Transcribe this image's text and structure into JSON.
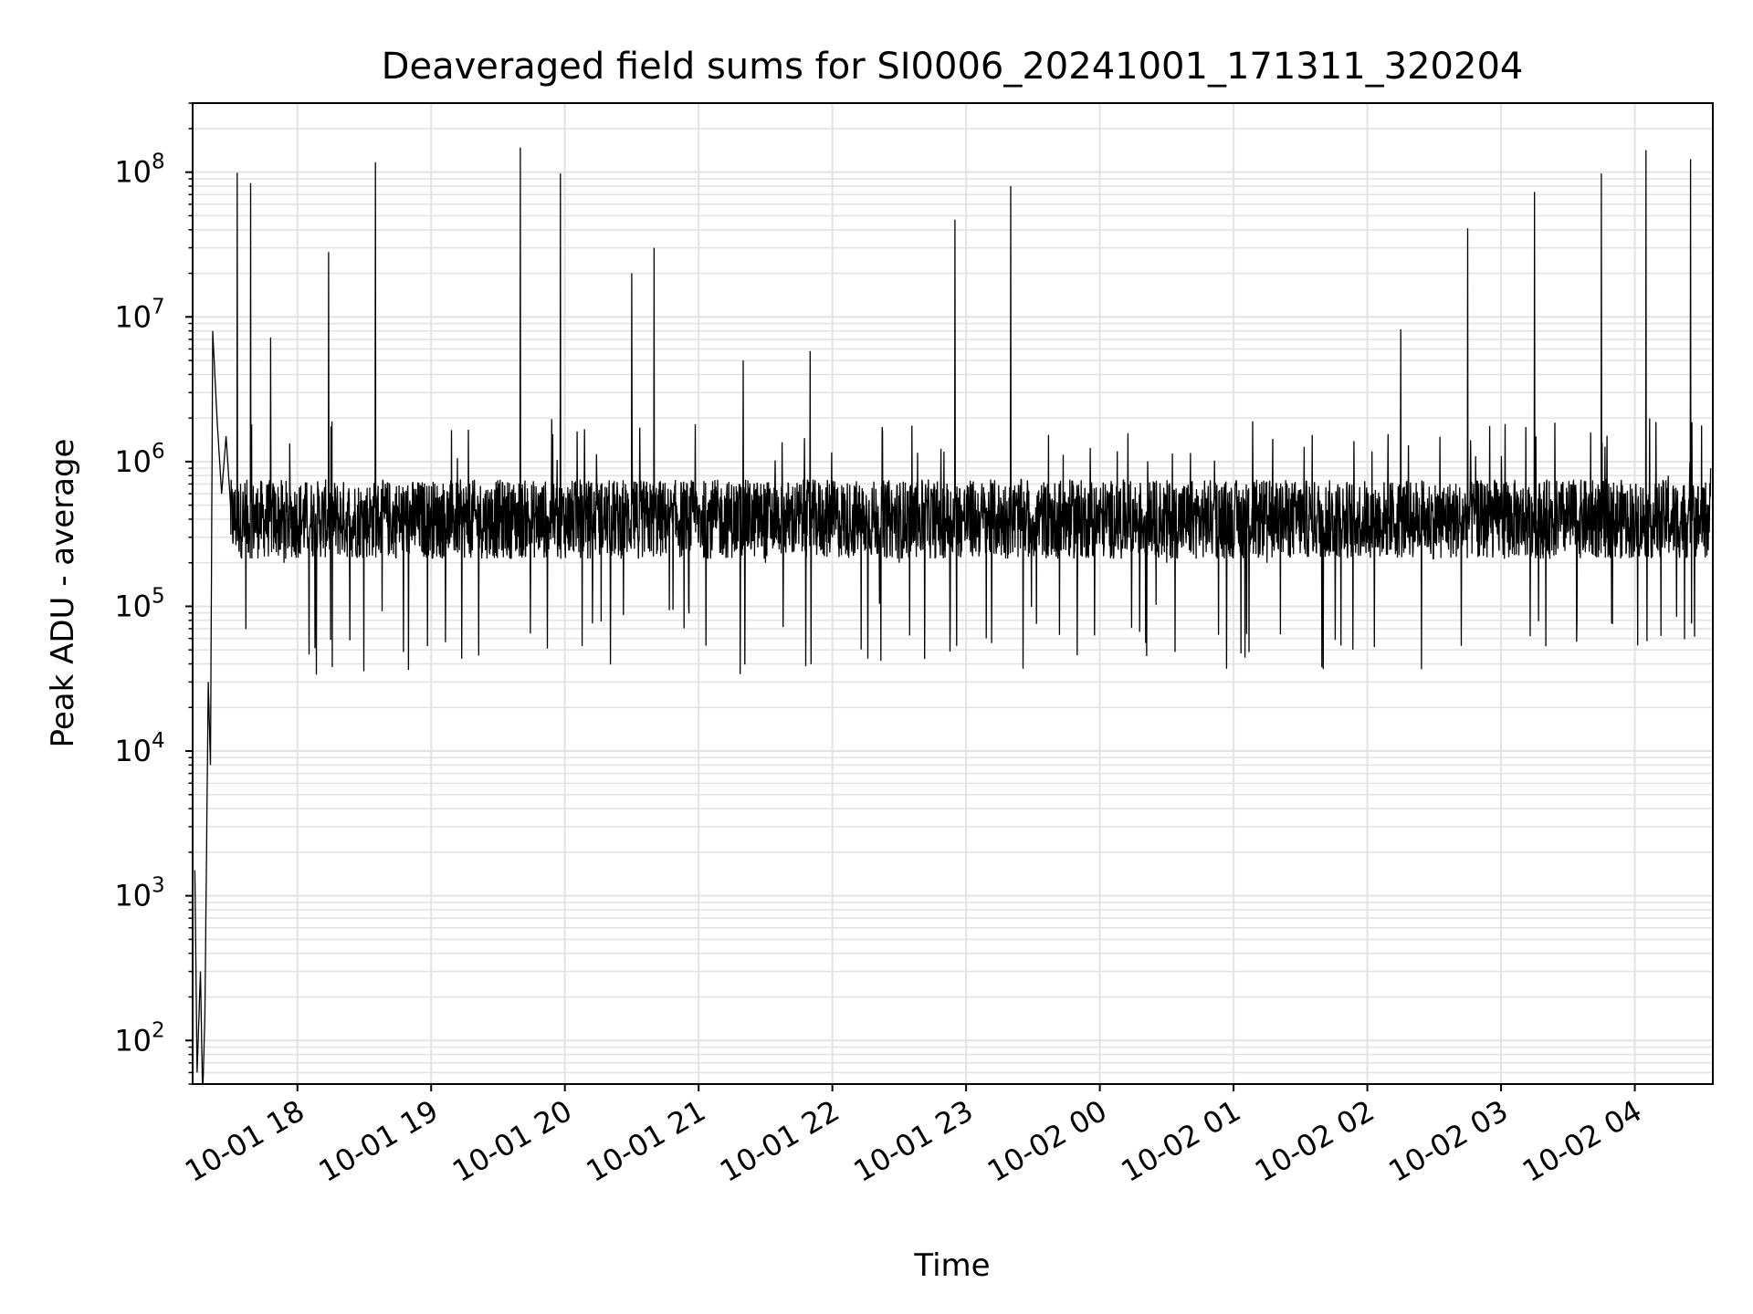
{
  "chart_data": {
    "type": "line",
    "title": "Deaveraged field sums for SI0006_20241001_171311_320204",
    "xlabel": "Time",
    "ylabel": "Peak ADU - average",
    "yscale": "log",
    "ylim": [
      50,
      300000000
    ],
    "xlim": [
      "2024-10-01T17:13:00",
      "2024-10-02T04:35:00"
    ],
    "grid": true,
    "line_color": "#000000",
    "grid_color": "#e3e3e3",
    "x_ticks": [
      {
        "t": "2024-10-01T18:00",
        "label": "10-01 18"
      },
      {
        "t": "2024-10-01T19:00",
        "label": "10-01 19"
      },
      {
        "t": "2024-10-01T20:00",
        "label": "10-01 20"
      },
      {
        "t": "2024-10-01T21:00",
        "label": "10-01 21"
      },
      {
        "t": "2024-10-01T22:00",
        "label": "10-01 22"
      },
      {
        "t": "2024-10-01T23:00",
        "label": "10-01 23"
      },
      {
        "t": "2024-10-02T00:00",
        "label": "10-02 00"
      },
      {
        "t": "2024-10-02T01:00",
        "label": "10-02 01"
      },
      {
        "t": "2024-10-02T02:00",
        "label": "10-02 02"
      },
      {
        "t": "2024-10-02T03:00",
        "label": "10-02 03"
      },
      {
        "t": "2024-10-02T04:00",
        "label": "10-02 04"
      }
    ],
    "y_ticks": [
      {
        "value": 100,
        "base": "10",
        "exp": "2"
      },
      {
        "value": 1000,
        "base": "10",
        "exp": "3"
      },
      {
        "value": 10000,
        "base": "10",
        "exp": "4"
      },
      {
        "value": 100000,
        "base": "10",
        "exp": "5"
      },
      {
        "value": 1000000,
        "base": "10",
        "exp": "6"
      },
      {
        "value": 10000000,
        "base": "10",
        "exp": "7"
      },
      {
        "value": 100000000,
        "base": "10",
        "exp": "8"
      }
    ],
    "series": [
      {
        "name": "",
        "note_on_x": "x values are timestamps (HH:MM:SS); samples from 10-01 17:14 to 10-02 04:34",
        "x": [
          "17:14:00",
          "17:15:00",
          "17:16:30",
          "17:17:30",
          "17:18:30",
          "17:20:00",
          "17:21:00",
          "17:22:00",
          "17:24:00",
          "17:26:00",
          "17:28:00",
          "17:30:00",
          "17:33:00",
          "17:36:00",
          "17:39:00",
          "17:42:00",
          "17:45:00",
          "17:48:00",
          "17:51:00",
          "17:54:00",
          "18:00:00",
          "18:07:00",
          "18:14:00",
          "18:21:00",
          "18:28:00",
          "18:35:00",
          "18:42:00",
          "18:50:00",
          "19:00:00",
          "19:10:00",
          "19:20:00",
          "19:30:00",
          "19:40:00",
          "19:49:00",
          "19:58:00",
          "20:10:00",
          "20:20:00",
          "20:30:00",
          "20:40:00",
          "20:50:00",
          "21:00:00",
          "21:10:00",
          "21:20:00",
          "21:30:00",
          "21:40:00",
          "21:50:00",
          "22:00:00",
          "22:15:00",
          "22:30:00",
          "22:45:00",
          "22:55:00",
          "23:05:00",
          "23:20:00",
          "23:35:00",
          "23:50:00",
          "00:00:00",
          "00:15:00",
          "00:30:00",
          "00:45:00",
          "01:00:00",
          "01:15:00",
          "01:30:00",
          "01:45:00",
          "02:00:00",
          "02:15:00",
          "02:30:00",
          "02:45:00",
          "03:00:00",
          "03:15:00",
          "03:30:00",
          "03:45:00",
          "03:55:00",
          "04:05:00",
          "04:15:00",
          "04:25:00",
          "04:34:00"
        ],
        "y": [
          1500,
          60,
          300,
          40,
          150,
          30000,
          8000,
          8000000,
          1900000,
          600000,
          1500000,
          500000,
          99000000,
          300000,
          84000000,
          300000,
          400000,
          7200000,
          350000,
          200000,
          400000,
          500000,
          28000000,
          400000,
          300000,
          117000000,
          300000,
          400000,
          350000,
          500000,
          400000,
          300000,
          148000000,
          300000,
          98000000,
          400000,
          300000,
          20000000,
          30000000,
          300000,
          300000,
          250000,
          5000000,
          200000,
          350000,
          5800000,
          300000,
          250000,
          200000,
          300000,
          47000000,
          300000,
          80000000,
          250000,
          200000,
          300000,
          250000,
          200000,
          300000,
          250000,
          200000,
          300000,
          250000,
          300000,
          8200000,
          300000,
          41000000,
          400000,
          73000000,
          500000,
          98000000,
          600000,
          142000000,
          800000,
          123000000,
          900000
        ],
        "noise_baseline": 400000,
        "noise_dip_min": 33000,
        "noise_spike_max": 2000000
      }
    ]
  }
}
